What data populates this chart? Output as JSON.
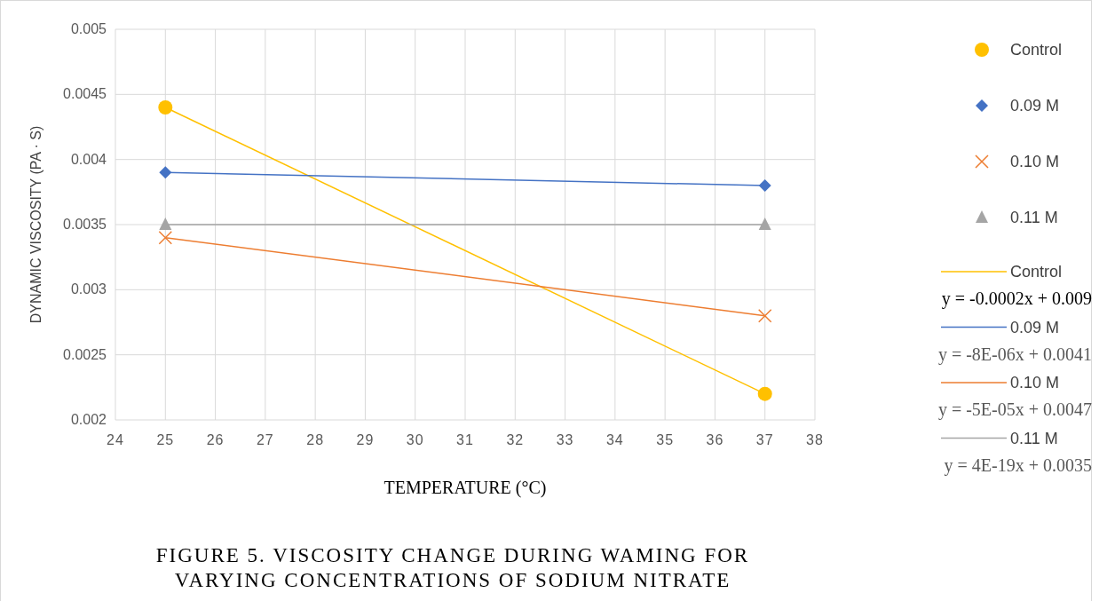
{
  "chart_data": {
    "type": "scatter",
    "title": "FIGURE 5. VISCOSITY CHANGE DURING WAMING FOR VARYING CONCENTRATIONS OF SODIUM NITRATE",
    "xlabel": "TEMPERATURE (°C)",
    "ylabel": "DYNAMIC VISCOSITY (PA · S)",
    "x": [
      25,
      37
    ],
    "series": [
      {
        "name": "Control",
        "color": "#ffc000",
        "marker": "circle",
        "values": [
          0.0044,
          0.0022
        ]
      },
      {
        "name": "0.09 M",
        "color": "#4472c4",
        "marker": "diamond",
        "values": [
          0.0039,
          0.0038
        ]
      },
      {
        "name": "0.10 M",
        "color": "#ed7d31",
        "marker": "cross",
        "values": [
          0.0034,
          0.0028
        ]
      },
      {
        "name": "0.11 M",
        "color": "#a5a5a5",
        "marker": "triangle",
        "values": [
          0.0035,
          0.0035
        ]
      },
      {
        "name": "Control",
        "type": "line",
        "color": "#ffc000",
        "values": [
          0.0044,
          0.0022
        ]
      },
      {
        "name": "0.09 M",
        "type": "line",
        "color": "#4472c4",
        "values": [
          0.0039,
          0.0038
        ]
      },
      {
        "name": "0.10 M",
        "type": "line",
        "color": "#ed7d31",
        "values": [
          0.0034,
          0.0028
        ]
      },
      {
        "name": "0.11 M",
        "type": "line",
        "color": "#a5a5a5",
        "values": [
          0.0035,
          0.0035
        ]
      }
    ],
    "annotations": [
      "y = -0.0002x + 0.009",
      "y = -8E-06x + 0.0041",
      "y = -5E-05x + 0.0047",
      "y = 4E-19x + 0.0035"
    ],
    "xlim": [
      24,
      38
    ],
    "xticks": [
      24,
      25,
      26,
      27,
      28,
      29,
      30,
      31,
      32,
      33,
      34,
      35,
      36,
      37,
      38
    ],
    "ylim": [
      0.002,
      0.005
    ],
    "yticks": [
      0.002,
      0.0025,
      0.003,
      0.0035,
      0.004,
      0.0045,
      0.005
    ],
    "grid": true,
    "legend": "right"
  }
}
